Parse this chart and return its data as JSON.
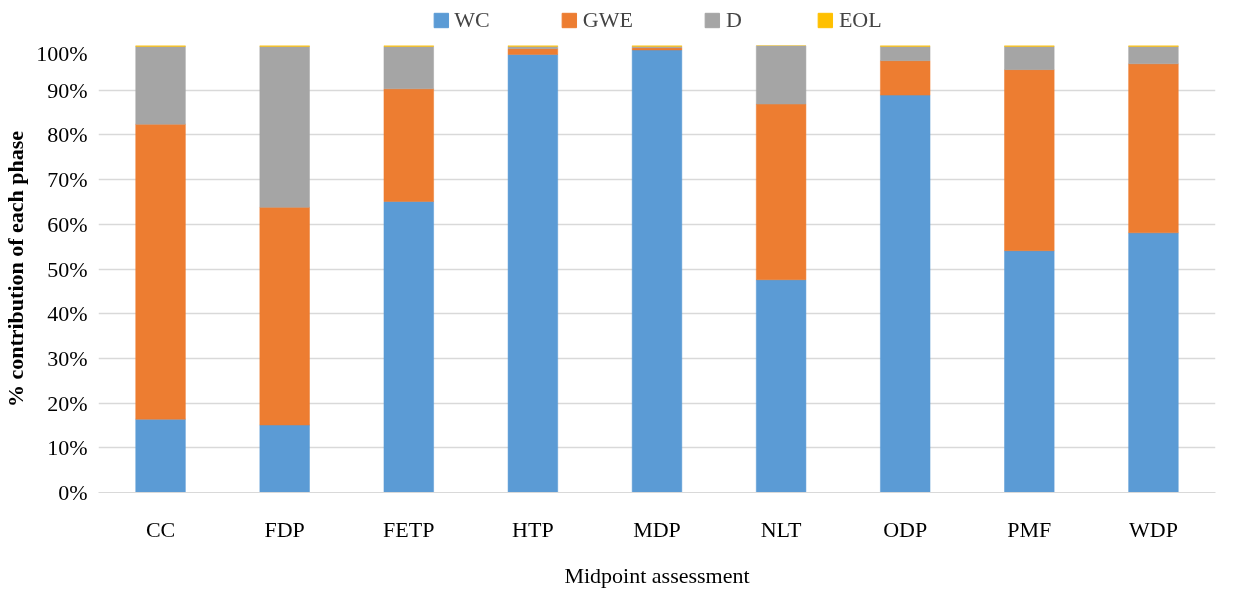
{
  "chart_data": {
    "type": "bar",
    "stacked": true,
    "ylabel": "% contribution of each phase",
    "xlabel": "Midpoint assessment",
    "categories": [
      "CC",
      "FDP",
      "FETP",
      "HTP",
      "MDP",
      "NLT",
      "ODP",
      "PMF",
      "WDP"
    ],
    "series": [
      {
        "name": "WC",
        "color": "#5b9bd5",
        "values": [
          16.4,
          15.1,
          65.1,
          98.0,
          99.0,
          47.6,
          88.9,
          54.1,
          58.1
        ]
      },
      {
        "name": "GWE",
        "color": "#ed7d31",
        "values": [
          66.0,
          48.7,
          25.2,
          1.3,
          0.5,
          39.3,
          7.7,
          40.5,
          37.8
        ]
      },
      {
        "name": "D",
        "color": "#a5a5a5",
        "values": [
          17.4,
          36.0,
          9.5,
          0.5,
          0.3,
          13.1,
          3.2,
          5.2,
          3.9
        ]
      },
      {
        "name": "EOL",
        "color": "#ffc000",
        "values": [
          0.2,
          0.2,
          0.2,
          0.2,
          0.2,
          0.0,
          0.2,
          0.2,
          0.2
        ]
      }
    ],
    "ylim": [
      0,
      100
    ],
    "yticks": [
      {
        "value": 0,
        "label": "0%"
      },
      {
        "value": 10,
        "label": "10%"
      },
      {
        "value": 20,
        "label": "20%"
      },
      {
        "value": 30,
        "label": "30%"
      },
      {
        "value": 40,
        "label": "40%"
      },
      {
        "value": 50,
        "label": "50%"
      },
      {
        "value": 60,
        "label": "60%"
      },
      {
        "value": 70,
        "label": "70%"
      },
      {
        "value": 80,
        "label": "80%"
      },
      {
        "value": 90,
        "label": "90%"
      },
      {
        "value": 100,
        "label": "100%"
      }
    ],
    "grid": "y",
    "legend": "top"
  }
}
